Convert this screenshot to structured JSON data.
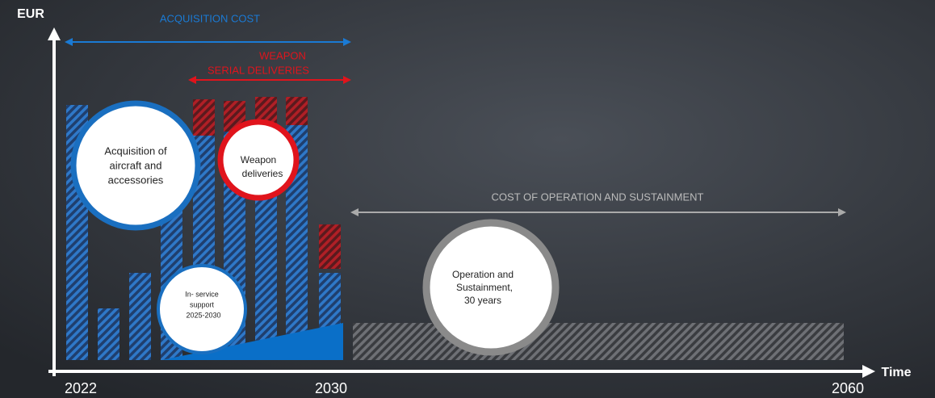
{
  "axis": {
    "y_label": "EUR",
    "x_label": "Time",
    "x_ticks": [
      "2022",
      "2030",
      "2060"
    ]
  },
  "spans": {
    "acquisition": "ACQUISITION COST",
    "weapon": [
      "WEAPON",
      "SERIAL DELIVERIES"
    ],
    "operation": "COST OF OPERATION AND SUSTAINMENT"
  },
  "circles": {
    "acquisition": [
      "Acquisition of",
      "aircraft and",
      "accessories"
    ],
    "weapon": [
      "Weapon",
      "deliveries"
    ],
    "support": [
      "In- service",
      "support",
      "2025-2030"
    ],
    "operation": [
      "Operation and",
      "Sustainment,",
      "30 years"
    ]
  }
}
